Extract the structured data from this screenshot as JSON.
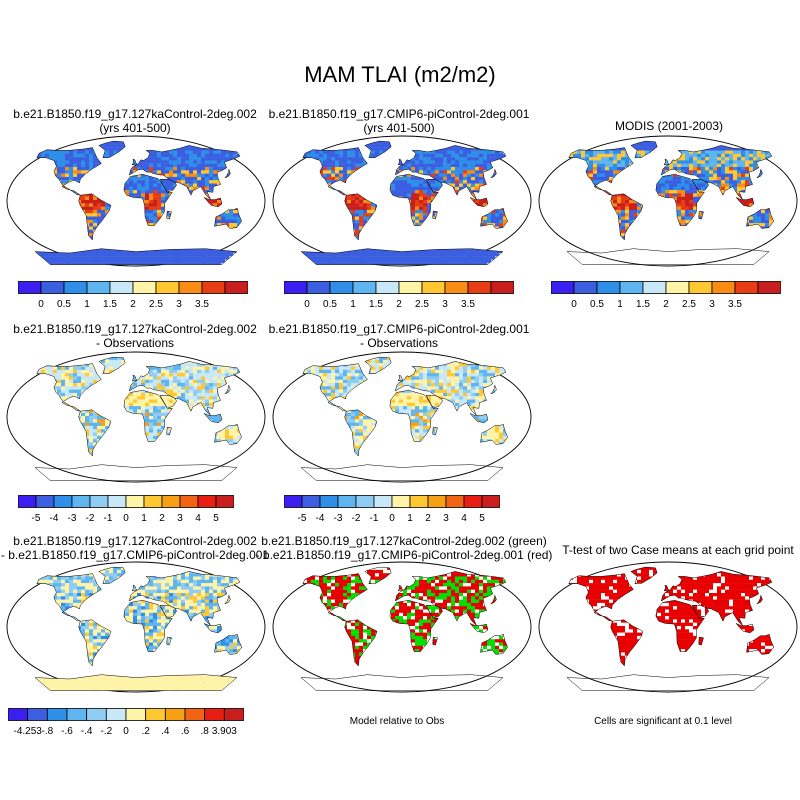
{
  "page_title": "MAM TLAI (m2/m2)",
  "panels": {
    "case1": {
      "line1": "b.e21.B1850.f19_g17.127kaControl-2deg.002",
      "line2": "(yrs 401-500)"
    },
    "case2": {
      "line1": "b.e21.B1850.f19_g17.CMIP6-piControl-2deg.001",
      "line2": "(yrs 401-500)"
    },
    "obs": {
      "line1": "MODIS (2001-2003)"
    },
    "diff1": {
      "line1": "b.e21.B1850.f19_g17.127kaControl-2deg.002",
      "line2": "- Observations"
    },
    "diff2": {
      "line1": "b.e21.B1850.f19_g17.CMIP6-piControl-2deg.001",
      "line2": "- Observations"
    },
    "case_diff": {
      "line1": "b.e21.B1850.f19_g17.127kaControl-2deg.002",
      "line2": "- b.e21.B1850.f19_g17.CMIP6-piControl-2deg.001"
    },
    "rel_obs": {
      "line1": "b.e21.B1850.f19_g17.127kaControl-2deg.002 (green)",
      "line2": "- b.e21.B1850.f19_g17.CMIP6-piControl-2deg.001 (red)",
      "caption": "Model relative to Obs"
    },
    "ttest": {
      "line1": "T-test of two Case means at each grid point",
      "caption": "Cells are significant at 0.1 level"
    }
  },
  "chart_data": [
    {
      "type": "heatmap",
      "panel": "case1",
      "colorbar_labels": [
        "0",
        "0.5",
        "1",
        "1.5",
        "2",
        "2.5",
        "3",
        "3.5"
      ]
    },
    {
      "type": "heatmap",
      "panel": "case2",
      "colorbar_labels": [
        "0",
        "0.5",
        "1",
        "1.5",
        "2",
        "2.5",
        "3",
        "3.5"
      ]
    },
    {
      "type": "heatmap",
      "panel": "obs",
      "colorbar_labels": [
        "0",
        "0.5",
        "1",
        "1.5",
        "2",
        "2.5",
        "3",
        "3.5"
      ]
    },
    {
      "type": "heatmap",
      "panel": "diff1",
      "colorbar_labels": [
        "-5",
        "-4",
        "-3",
        "-2",
        "-1",
        "0",
        "1",
        "2",
        "3",
        "4",
        "5"
      ]
    },
    {
      "type": "heatmap",
      "panel": "diff2",
      "colorbar_labels": [
        "-5",
        "-4",
        "-3",
        "-2",
        "-1",
        "0",
        "1",
        "2",
        "3",
        "4",
        "5"
      ]
    },
    {
      "type": "heatmap",
      "panel": "case_diff",
      "colorbar_labels": [
        "-4.253",
        "-.8",
        "-.6",
        "-.4",
        "-.2",
        "0",
        ".2",
        ".4",
        ".6",
        ".8",
        "3.903"
      ]
    },
    {
      "type": "heatmap",
      "panel": "rel_obs",
      "legend": "green / red"
    },
    {
      "type": "heatmap",
      "panel": "ttest",
      "legend": "red"
    }
  ],
  "colors": {
    "level_scale_9": [
      "#3b1ff0",
      "#3b5fe0",
      "#2e8ee8",
      "#5fb5f0",
      "#c8e8f8",
      "#fff3a8",
      "#ffc832",
      "#f88c14",
      "#e83c14",
      "#c81e1e"
    ],
    "diff_scale_12": [
      "#3b1ff0",
      "#3b5fe0",
      "#2e8ee8",
      "#5fb5f0",
      "#8fcdf4",
      "#c8e8f8",
      "#fff3a8",
      "#ffc832",
      "#f8a014",
      "#f06414",
      "#e81e14",
      "#c81e1e"
    ],
    "green": "#00e000",
    "red": "#e80000"
  }
}
